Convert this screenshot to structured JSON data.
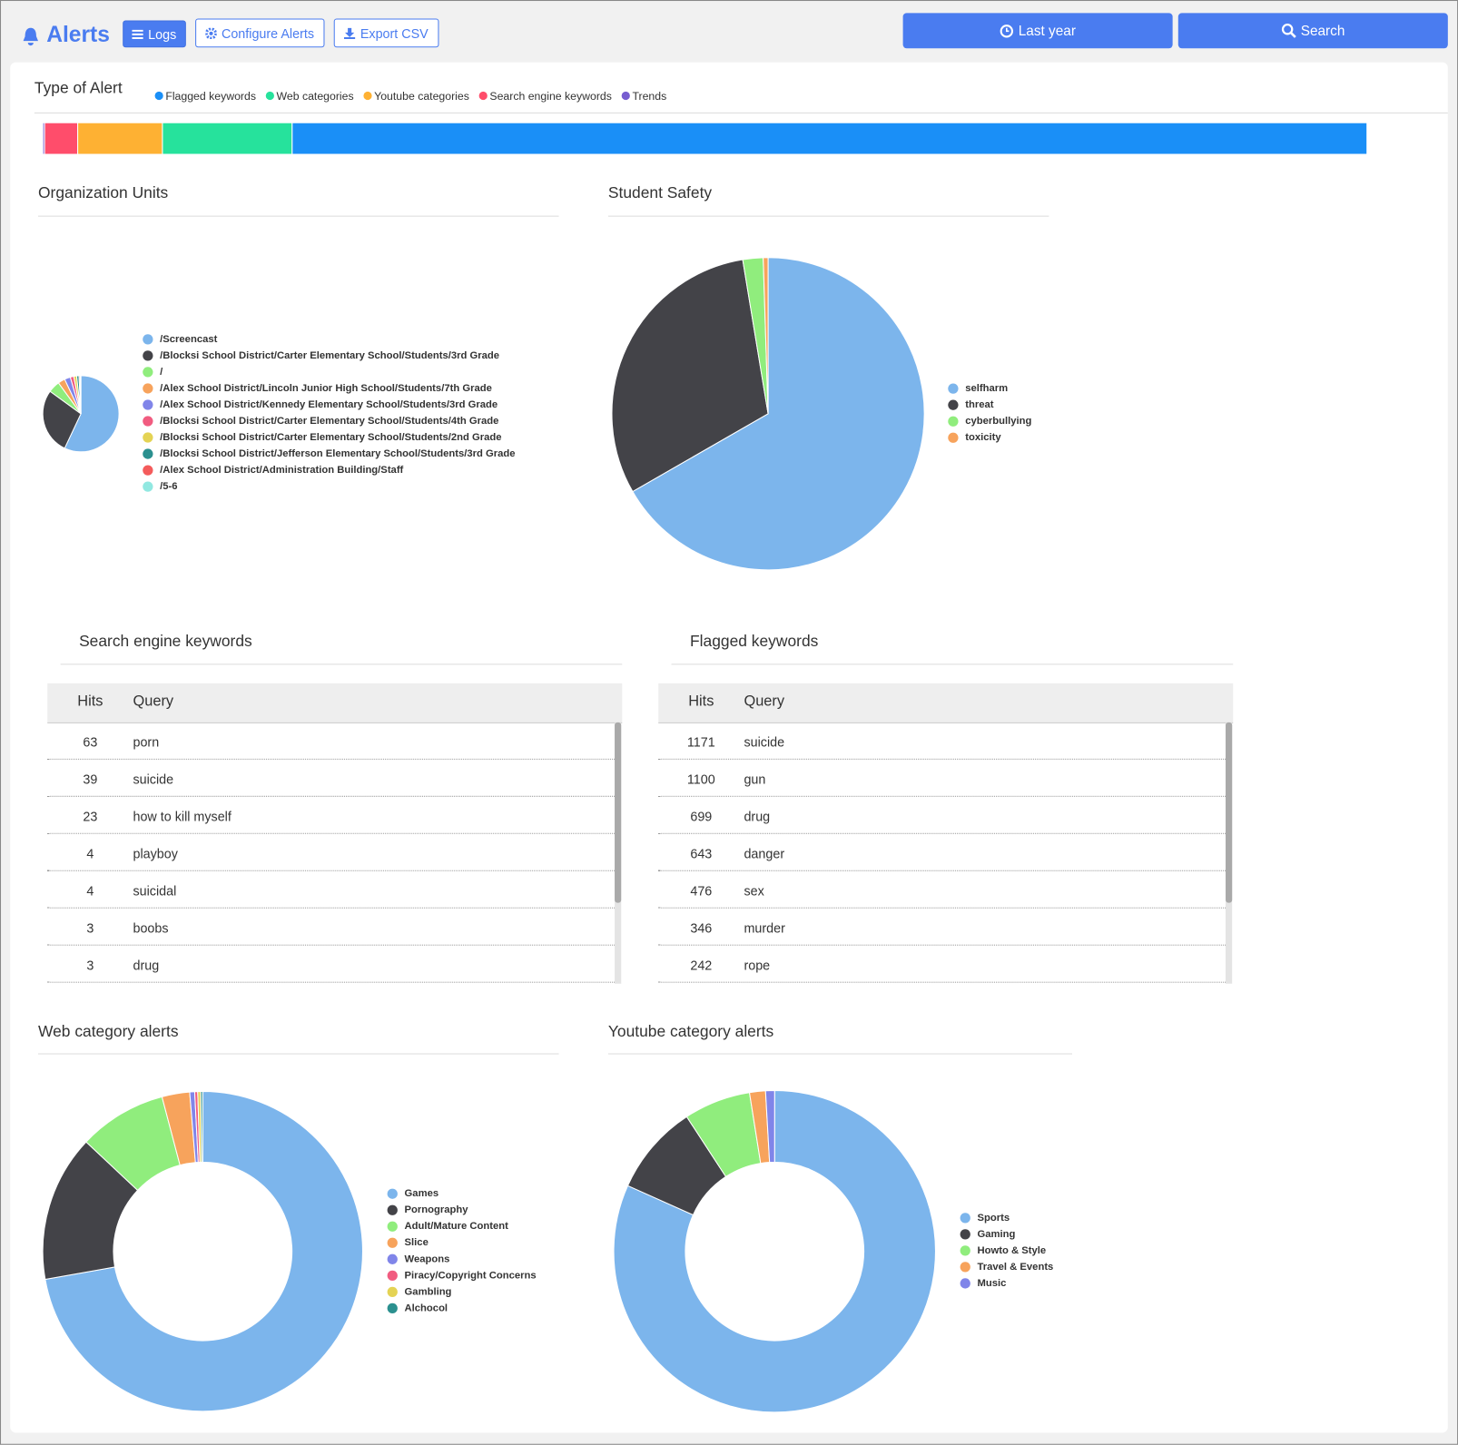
{
  "header": {
    "title": "Alerts",
    "buttons": [
      "Logs",
      "Configure Alerts",
      "Export CSV"
    ],
    "time_range": "Last year",
    "search": "Search"
  },
  "alert_types": {
    "type": "stacked-bar",
    "title": "Type of Alert",
    "series": [
      {
        "name": "Flagged keywords",
        "color": "#1a8ff7",
        "values": [
          81.2
        ]
      },
      {
        "name": "Web categories",
        "color": "#26e29c",
        "values": [
          9.8
        ]
      },
      {
        "name": "Youtube categories",
        "color": "#feb133",
        "values": [
          6.4
        ]
      },
      {
        "name": "Search engine keywords",
        "color": "#ff4d6b",
        "values": [
          2.5
        ]
      },
      {
        "name": "Trends",
        "color": "#775dd0",
        "values": [
          0.14
        ]
      }
    ]
  },
  "org_units": {
    "type": "pie",
    "title": "Organization Units",
    "categories": [
      "/Screencast",
      "/Blocksi School District/Carter Elementary School/Students/3rd Grade",
      "/",
      "/Alex School District/Lincoln Junior High School/Students/7th Grade",
      "/Alex School District/Kennedy Elementary School/Students/3rd Grade",
      "/Blocksi School District/Carter Elementary School/Students/4th Grade",
      "/Blocksi School District/Carter Elementary School/Students/2nd Grade",
      "/Blocksi School District/Jefferson Elementary School/Students/3rd Grade",
      "/Alex School District/Administration Building/Staff",
      "/5-6"
    ],
    "values": [
      57,
      28,
      5,
      3,
      2.5,
      1.5,
      1.2,
      1,
      0.5,
      0.3
    ],
    "colors": [
      "#7cb5ec",
      "#434348",
      "#90ed7d",
      "#f7a35c",
      "#8085e9",
      "#f15c80",
      "#e4d354",
      "#2b908f",
      "#f45b5b",
      "#91e8e1"
    ]
  },
  "student_safety": {
    "type": "pie",
    "title": "Student Safety",
    "categories": [
      "selfharm",
      "threat",
      "cyberbullying",
      "toxicity"
    ],
    "values": [
      66.7,
      30.7,
      2.1,
      0.5
    ],
    "colors": [
      "#7cb5ec",
      "#434348",
      "#90ed7d",
      "#f7a35c"
    ]
  },
  "search_keywords": {
    "title": "Search engine keywords",
    "columns": [
      "Hits",
      "Query"
    ],
    "rows": [
      [
        63,
        "porn"
      ],
      [
        39,
        "suicide"
      ],
      [
        23,
        "how to kill myself"
      ],
      [
        4,
        "playboy"
      ],
      [
        4,
        "suicidal"
      ],
      [
        3,
        "boobs"
      ],
      [
        3,
        "drug"
      ]
    ]
  },
  "flagged_keywords": {
    "title": "Flagged keywords",
    "columns": [
      "Hits",
      "Query"
    ],
    "rows": [
      [
        1171,
        "suicide"
      ],
      [
        1100,
        "gun"
      ],
      [
        699,
        "drug"
      ],
      [
        643,
        "danger"
      ],
      [
        476,
        "sex"
      ],
      [
        346,
        "murder"
      ],
      [
        242,
        "rope"
      ]
    ]
  },
  "web_categories": {
    "type": "donut",
    "title": "Web category alerts",
    "categories": [
      "Games",
      "Pornography",
      "Adult/Mature Content",
      "Slice",
      "Weapons",
      "Piracy/Copyright Concerns",
      "Gambling",
      "Alchocol"
    ],
    "values": [
      72.2,
      14.8,
      8.9,
      2.8,
      0.5,
      0.3,
      0.3,
      0.2
    ],
    "colors": [
      "#7cb5ec",
      "#434348",
      "#90ed7d",
      "#f7a35c",
      "#8085e9",
      "#f15c80",
      "#e4d354",
      "#2b908f"
    ]
  },
  "youtube_categories": {
    "type": "donut",
    "title": "Youtube category alerts",
    "categories": [
      "Sports",
      "Gaming",
      "Howto & Style",
      "Travel & Events",
      "Music"
    ],
    "values": [
      81.7,
      9.1,
      6.7,
      1.6,
      0.9
    ],
    "colors": [
      "#7cb5ec",
      "#434348",
      "#90ed7d",
      "#f7a35c",
      "#8085e9"
    ]
  }
}
